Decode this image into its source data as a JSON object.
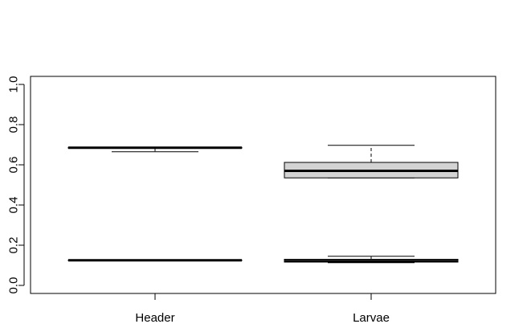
{
  "chart_data": {
    "type": "boxplot",
    "title": "",
    "xlabel": "",
    "ylabel": "",
    "ylim": [
      -0.04,
      1.04
    ],
    "yticks": [
      "0.0",
      "0.2",
      "0.4",
      "0.6",
      "0.8",
      "1.0"
    ],
    "ytick_values": [
      0,
      0.2,
      0.4,
      0.6,
      0.8,
      1.0
    ],
    "categories": [
      "Header",
      "Larvae"
    ],
    "box_fill": "#d3d3d3",
    "boxes": [
      {
        "category": "Header",
        "boxes": [
          {
            "q1": 0.683,
            "median": 0.685,
            "q3": 0.687,
            "whisker_low": 0.665,
            "whisker_high": 0.687
          },
          {
            "q1": 0.124,
            "median": 0.125,
            "q3": 0.126,
            "whisker_low": 0.124,
            "whisker_high": 0.126
          }
        ]
      },
      {
        "category": "Larvae",
        "boxes": [
          {
            "q1": 0.535,
            "median": 0.57,
            "q3": 0.612,
            "whisker_low": 0.535,
            "whisker_high": 0.697
          },
          {
            "q1": 0.116,
            "median": 0.121,
            "q3": 0.13,
            "whisker_low": 0.113,
            "whisker_high": 0.145
          }
        ]
      }
    ]
  }
}
